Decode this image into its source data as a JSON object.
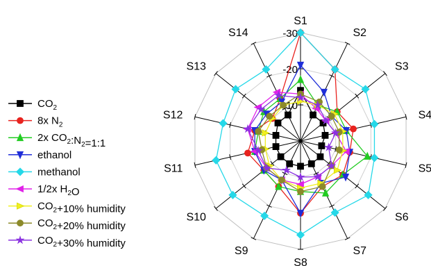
{
  "chart_data": {
    "type": "radar",
    "axes": [
      "S1",
      "S2",
      "S3",
      "S4",
      "S5",
      "S6",
      "S7",
      "S8",
      "S9",
      "S10",
      "S11",
      "S12",
      "S13",
      "S14"
    ],
    "radial_ticks": [
      "-30",
      "-20",
      "-10"
    ],
    "r_range": [
      0,
      -30
    ],
    "series": [
      {
        "name_parts": [
          {
            "t": "CO"
          },
          {
            "t": "2",
            "sub": true
          }
        ],
        "color": "#000000",
        "marker": "square",
        "values": [
          -14,
          -8,
          -8,
          -7,
          -6,
          -7,
          -7,
          -7,
          -7,
          -7,
          -7,
          -7,
          -8,
          -8
        ]
      },
      {
        "name_parts": [
          {
            "t": "8x N"
          },
          {
            "t": "2",
            "sub": true
          }
        ],
        "color": "#e8231f",
        "marker": "circle",
        "values": [
          -30,
          -22,
          -13,
          -15,
          -14,
          -15,
          -14,
          -20,
          -14,
          -13,
          -15,
          -13,
          -10,
          -13
        ]
      },
      {
        "name_parts": [
          {
            "t": "2x CO"
          },
          {
            "t": "2",
            "sub": true
          },
          {
            "t": ":N"
          },
          {
            "t": "2",
            "sub": true
          },
          {
            "t": "=1:1"
          }
        ],
        "color": "#22cc22",
        "marker": "triangle-up",
        "values": [
          -17,
          -11,
          -13,
          -13,
          -19,
          -15,
          -16,
          -14,
          -14,
          -13,
          -13,
          -12,
          -13,
          -13
        ]
      },
      {
        "name_parts": [
          {
            "t": "ethanol"
          }
        ],
        "color": "#1f2ed8",
        "marker": "triangle-down",
        "values": [
          -21,
          -15,
          -11,
          -13,
          -14,
          -16,
          -13,
          -20,
          -12,
          -13,
          -13,
          -13,
          -12,
          -12
        ]
      },
      {
        "name_parts": [
          {
            "t": "methanol"
          }
        ],
        "color": "#25d8e8",
        "marker": "diamond",
        "values": [
          -30,
          -22,
          -23,
          -21,
          -21,
          -24,
          -22,
          -26,
          -23,
          -24,
          -24,
          -22,
          -23,
          -22
        ]
      },
      {
        "name_parts": [
          {
            "t": "1/2x H"
          },
          {
            "t": "2",
            "sub": true
          },
          {
            "t": "O"
          }
        ],
        "color": "#e021e8",
        "marker": "triangle-left",
        "values": [
          -13,
          -10,
          -9,
          -10,
          -13,
          -11,
          -11,
          -12,
          -12,
          -12,
          -13,
          -15,
          -15,
          -15
        ]
      },
      {
        "name_parts": [
          {
            "t": "CO"
          },
          {
            "t": "2",
            "sub": true
          },
          {
            "t": "+10% humidity"
          }
        ],
        "color": "#f0f020",
        "marker": "triangle-right",
        "values": [
          -11,
          -11,
          -12,
          -12,
          -12,
          -13,
          -13,
          -13,
          -12,
          -11,
          -10,
          -10,
          -10,
          -11
        ]
      },
      {
        "name_parts": [
          {
            "t": "CO"
          },
          {
            "t": "2",
            "sub": true
          },
          {
            "t": "+20% humidity"
          }
        ],
        "color": "#8c8a2a",
        "marker": "circle",
        "values": [
          -13,
          -12,
          -11,
          -11,
          -11,
          -11,
          -14,
          -14,
          -12,
          -12,
          -11,
          -12,
          -11,
          -11
        ]
      },
      {
        "name_parts": [
          {
            "t": "CO"
          },
          {
            "t": "2",
            "sub": true
          },
          {
            "t": "+30% humidity"
          }
        ],
        "color": "#8a32e0",
        "marker": "star",
        "values": [
          -12,
          -11,
          -9,
          -10,
          -8,
          -11,
          -11,
          -10,
          -9,
          -12,
          -12,
          -15,
          -14,
          -14
        ]
      }
    ]
  }
}
